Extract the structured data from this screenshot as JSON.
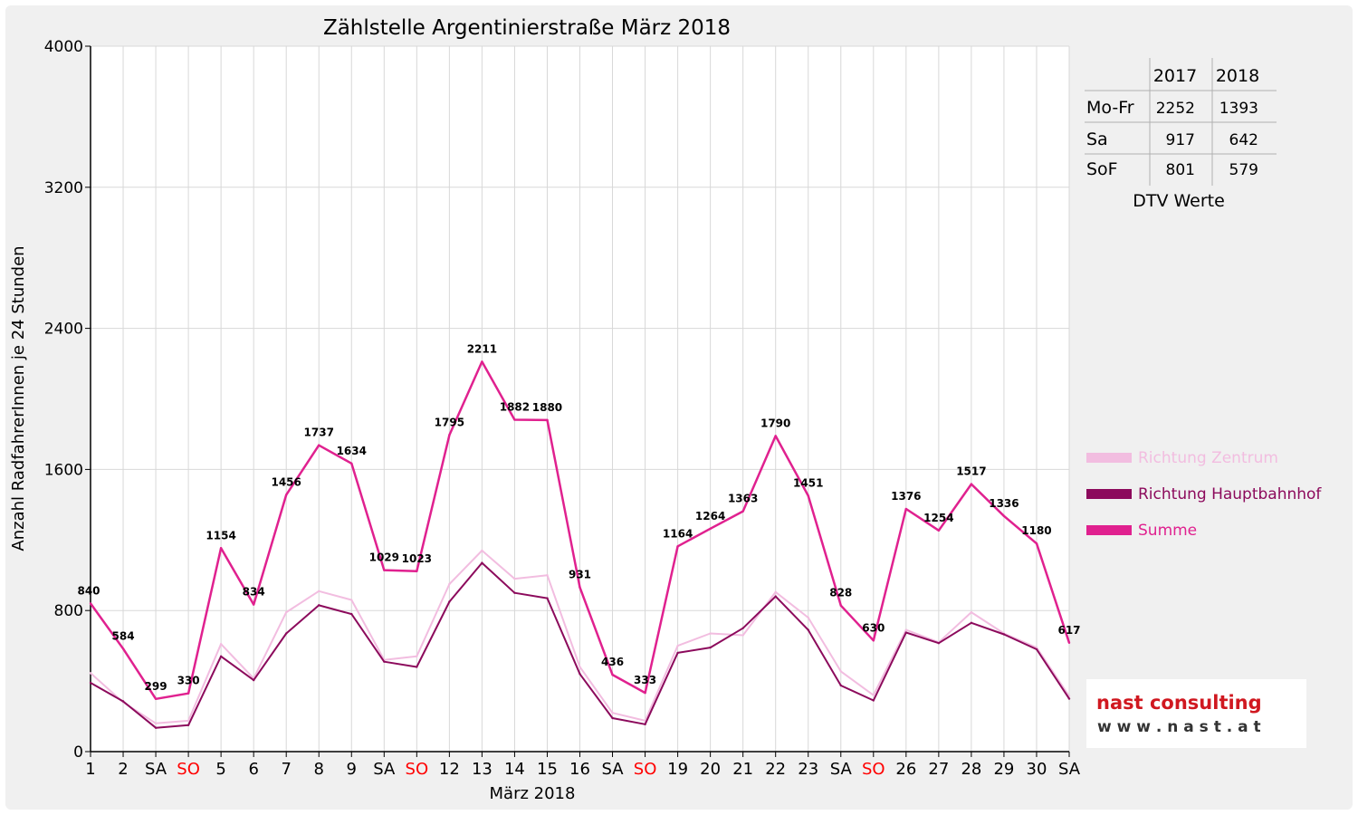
{
  "chart_data": {
    "type": "line",
    "title": "Zählstelle Argentinierstraße März 2018",
    "xlabel": "März 2018",
    "ylabel": "Anzahl RadfahrerInnen je 24 Stunden",
    "ylim": [
      0,
      4000
    ],
    "yticks": [
      "0",
      "800",
      "1600",
      "2400",
      "3200",
      "4000"
    ],
    "grid": true,
    "legend_position": "right",
    "categories": [
      "1",
      "2",
      "SA",
      "SO",
      "5",
      "6",
      "7",
      "8",
      "9",
      "SA",
      "SO",
      "12",
      "13",
      "14",
      "15",
      "16",
      "SA",
      "SO",
      "19",
      "20",
      "21",
      "22",
      "23",
      "SA",
      "SO",
      "26",
      "27",
      "28",
      "29",
      "30",
      "SA"
    ],
    "category_colors": [
      "#000000",
      "#000000",
      "#000000",
      "#ff0000",
      "#000000",
      "#000000",
      "#000000",
      "#000000",
      "#000000",
      "#000000",
      "#ff0000",
      "#000000",
      "#000000",
      "#000000",
      "#000000",
      "#000000",
      "#000000",
      "#ff0000",
      "#000000",
      "#000000",
      "#000000",
      "#000000",
      "#000000",
      "#000000",
      "#ff0000",
      "#000000",
      "#000000",
      "#000000",
      "#000000",
      "#000000",
      "#000000"
    ],
    "series": [
      {
        "name": "Richtung Zentrum",
        "color": "#f2bde0",
        "values": [
          445,
          280,
          160,
          175,
          610,
          415,
          790,
          910,
          860,
          520,
          540,
          950,
          1140,
          980,
          1000,
          480,
          220,
          175,
          600,
          670,
          660,
          905,
          760,
          455,
          320,
          690,
          620,
          790,
          670,
          590,
          315
        ]
      },
      {
        "name": "Richtung Hauptbahnhof",
        "color": "#8c0a5c",
        "values": [
          390,
          285,
          135,
          150,
          540,
          405,
          670,
          830,
          780,
          510,
          480,
          850,
          1070,
          900,
          870,
          440,
          190,
          155,
          560,
          590,
          700,
          880,
          690,
          375,
          290,
          675,
          615,
          730,
          665,
          580,
          300
        ]
      },
      {
        "name": "Summe",
        "color": "#e0218f",
        "values": [
          840,
          584,
          299,
          330,
          1154,
          834,
          1456,
          1737,
          1634,
          1029,
          1023,
          1795,
          2211,
          1882,
          1880,
          931,
          436,
          333,
          1164,
          1264,
          1363,
          1790,
          1451,
          828,
          630,
          1376,
          1254,
          1517,
          1336,
          1180,
          617
        ],
        "labels": [
          "840",
          "584",
          "299",
          "330",
          "1154",
          "834",
          "1456",
          "1737",
          "1634",
          "1029",
          "1023",
          "1795",
          "2211",
          "1882",
          "1880",
          "931",
          "436",
          "333",
          "1164",
          "1264",
          "1363",
          "1790",
          "1451",
          "828",
          "630",
          "1376",
          "1254",
          "1517",
          "1336",
          "1180",
          "617"
        ]
      }
    ]
  },
  "dtv_table": {
    "headers": [
      "",
      "2017",
      "2018"
    ],
    "rows": [
      [
        "Mo-Fr",
        "2252",
        "1393"
      ],
      [
        "Sa",
        "917",
        "642"
      ],
      [
        "SoF",
        "801",
        "579"
      ]
    ],
    "caption": "DTV Werte"
  },
  "logo": {
    "name": "nast consulting",
    "url_text": "w w w . n a s t . a t"
  }
}
